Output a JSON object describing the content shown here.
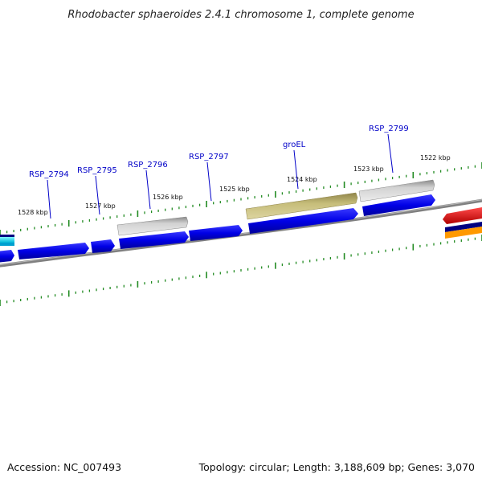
{
  "title": "Rhodobacter sphaeroides 2.4.1 chromosome 1, complete genome",
  "footer": {
    "accession": "Accession: NC_007493",
    "summary": "Topology: circular; Length: 3,188,609 bp; Genes: 3,070"
  },
  "kbp_labels": [
    "1528 kbp",
    "1527 kbp",
    "1526 kbp",
    "1525 kbp",
    "1524 kbp",
    "1523 kbp",
    "1522 kbp"
  ],
  "gene_labels": [
    "RSP_2794",
    "RSP_2795",
    "RSP_2796",
    "RSP_2797",
    "groEL",
    "RSP_2799"
  ],
  "colors": {
    "cds": "#0000ee",
    "pseudo_grey": "#a0a0a0",
    "groEL": "#b3a862",
    "backbone": "#808080",
    "tick": "#228b22",
    "label": "#0000c8",
    "red_feature": "#e00000",
    "cyan_feature": "#00e5ff",
    "orange_feature": "#ff9900",
    "navy_feature": "#000080"
  }
}
